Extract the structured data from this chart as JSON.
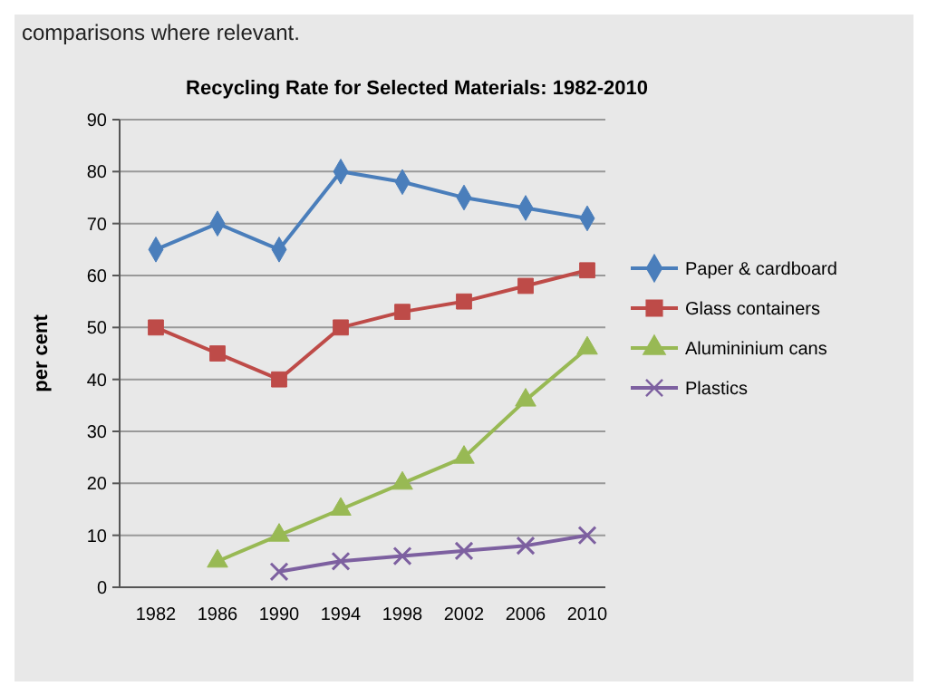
{
  "chart_data": {
    "type": "line",
    "title": "Recycling Rate for Selected Materials: 1982-2010",
    "ylabel": "per cent",
    "annotations": [
      "comparisons where relevant."
    ],
    "categories": [
      "1982",
      "1986",
      "1990",
      "1994",
      "1998",
      "2002",
      "2006",
      "2010"
    ],
    "series": [
      {
        "name": "Paper & cardboard",
        "color": "#4a7ebb",
        "marker": "diamond",
        "values": [
          65,
          70,
          65,
          80,
          78,
          75,
          73,
          71
        ]
      },
      {
        "name": "Glass containers",
        "color": "#be4b48",
        "marker": "square",
        "values": [
          50,
          45,
          40,
          50,
          53,
          55,
          58,
          61
        ]
      },
      {
        "name": "Alumininium cans",
        "color": "#98b954",
        "marker": "triangle",
        "values": [
          null,
          5,
          10,
          15,
          20,
          25,
          36,
          46
        ]
      },
      {
        "name": "Plastics",
        "color": "#7d60a0",
        "marker": "cross",
        "values": [
          null,
          null,
          3,
          5,
          6,
          7,
          8,
          10
        ]
      }
    ],
    "ylim": [
      0,
      90
    ],
    "yticks": [
      0,
      10,
      20,
      30,
      40,
      50,
      60,
      70,
      80,
      90
    ],
    "grid": "y",
    "legend": "right",
    "line_style": "solid"
  }
}
